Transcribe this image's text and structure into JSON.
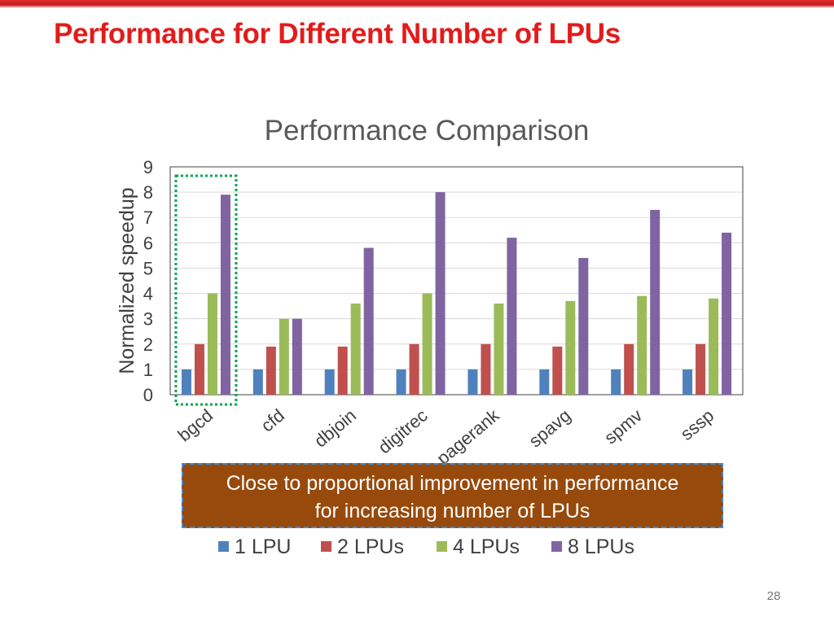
{
  "slide": {
    "title": "Performance for Different Number of LPUs",
    "page_number": "28"
  },
  "callout": {
    "line1": "Close to proportional improvement in performance",
    "line2": "for increasing number of LPUs"
  },
  "chart_data": {
    "type": "bar",
    "title": "Performance Comparison",
    "xlabel": "",
    "ylabel": "Normalized speedup",
    "ylim": [
      0,
      9
    ],
    "yticks": [
      0,
      1,
      2,
      3,
      4,
      5,
      6,
      7,
      8,
      9
    ],
    "grid": true,
    "legend_position": "bottom",
    "categories": [
      "bgcd",
      "cfd",
      "dbjoin",
      "digitrec",
      "pagerank",
      "spavg",
      "spmv",
      "sssp"
    ],
    "series": [
      {
        "name": "1 LPU",
        "color": "#4f81bd",
        "values": [
          1,
          1,
          1,
          1,
          1,
          1,
          1,
          1
        ]
      },
      {
        "name": "2 LPUs",
        "color": "#c0504d",
        "values": [
          2,
          1.9,
          1.9,
          2,
          2,
          1.9,
          2,
          2
        ]
      },
      {
        "name": "4 LPUs",
        "color": "#9bbb59",
        "values": [
          4,
          3,
          3.6,
          4,
          3.6,
          3.7,
          3.9,
          3.8
        ]
      },
      {
        "name": "8 LPUs",
        "color": "#8064a2",
        "values": [
          7.9,
          3,
          5.8,
          8,
          6.2,
          5.4,
          7.3,
          6.4
        ]
      }
    ],
    "highlight": {
      "category": "bgcd",
      "color": "#00a651",
      "style": "dotted"
    }
  }
}
